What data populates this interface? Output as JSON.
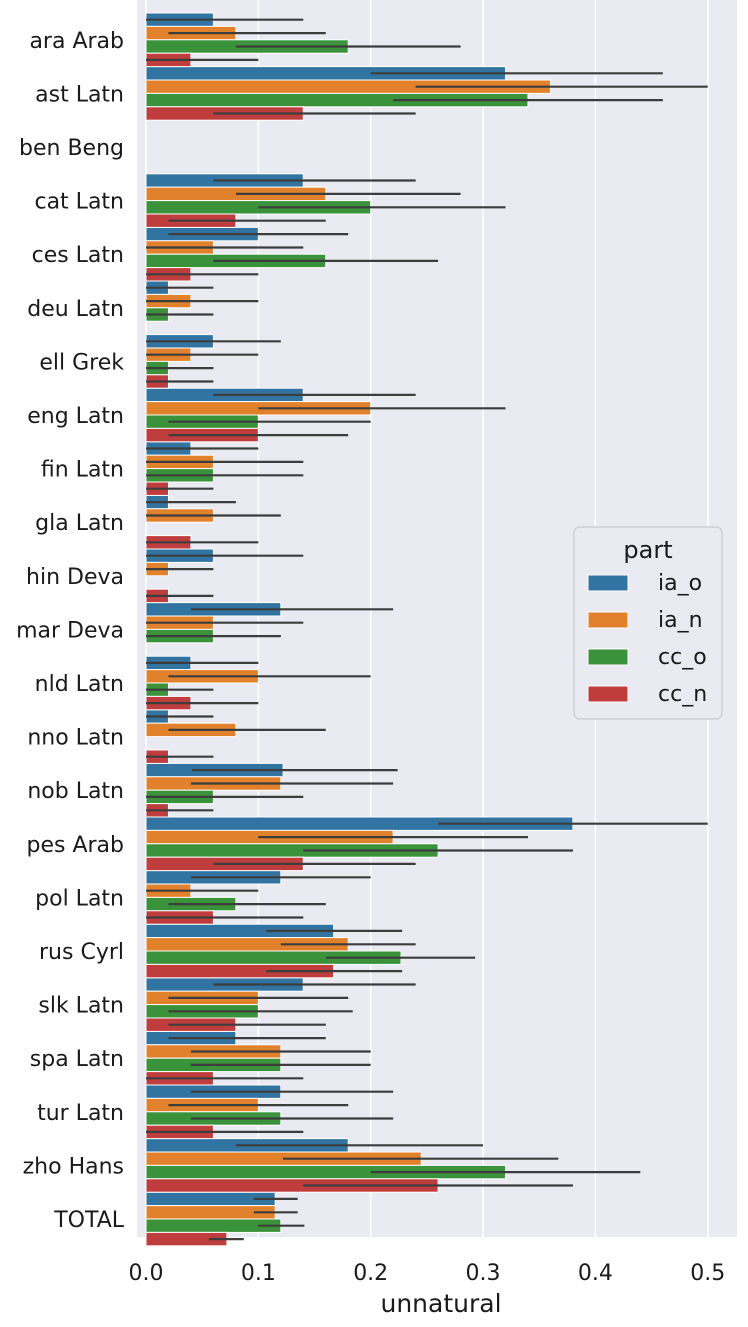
{
  "chart_data": {
    "type": "bar",
    "orientation": "horizontal",
    "xlabel": "unnatural",
    "ylabel": "",
    "xlim": [
      0,
      0.526
    ],
    "xticks": [
      0.0,
      0.1,
      0.2,
      0.3,
      0.4,
      0.5
    ],
    "xtick_labels": [
      "0.0",
      "0.1",
      "0.2",
      "0.3",
      "0.4",
      "0.5"
    ],
    "grid": true,
    "legend": {
      "title": "part",
      "location": "right"
    },
    "categories": [
      "ara Arab",
      "ast Latn",
      "ben Beng",
      "cat Latn",
      "ces Latn",
      "deu Latn",
      "ell Grek",
      "eng Latn",
      "fin Latn",
      "gla Latn",
      "hin Deva",
      "mar Deva",
      "nld Latn",
      "nno Latn",
      "nob Latn",
      "pes Arab",
      "pol Latn",
      "rus Cyrl",
      "slk Latn",
      "spa Latn",
      "tur Latn",
      "zho Hans",
      "TOTAL"
    ],
    "series": [
      {
        "name": "ia_o",
        "color": "#3274a1",
        "values": [
          0.06,
          0.32,
          0.0,
          0.14,
          0.1,
          0.02,
          0.06,
          0.14,
          0.04,
          0.02,
          0.06,
          0.12,
          0.04,
          0.02,
          0.122,
          0.38,
          0.12,
          0.167,
          0.14,
          0.08,
          0.12,
          0.18,
          0.115
        ],
        "err_low": [
          0.0,
          0.2,
          0.0,
          0.06,
          0.02,
          0.0,
          0.0,
          0.06,
          0.0,
          0.0,
          0.0,
          0.04,
          0.0,
          0.0,
          0.041,
          0.26,
          0.04,
          0.107,
          0.06,
          0.02,
          0.04,
          0.08,
          0.096
        ],
        "err_high": [
          0.14,
          0.46,
          0.0,
          0.24,
          0.18,
          0.06,
          0.12,
          0.24,
          0.1,
          0.08,
          0.14,
          0.22,
          0.1,
          0.06,
          0.224,
          0.5,
          0.2,
          0.228,
          0.24,
          0.16,
          0.22,
          0.3,
          0.135
        ]
      },
      {
        "name": "ia_n",
        "color": "#e1812c",
        "values": [
          0.08,
          0.36,
          0.0,
          0.16,
          0.06,
          0.04,
          0.04,
          0.2,
          0.06,
          0.06,
          0.02,
          0.06,
          0.1,
          0.08,
          0.12,
          0.22,
          0.04,
          0.18,
          0.1,
          0.12,
          0.1,
          0.245,
          0.115
        ],
        "err_low": [
          0.02,
          0.24,
          0.0,
          0.08,
          0.0,
          0.0,
          0.0,
          0.1,
          0.0,
          0.0,
          0.0,
          0.0,
          0.02,
          0.02,
          0.04,
          0.1,
          0.0,
          0.12,
          0.02,
          0.04,
          0.02,
          0.122,
          0.096
        ],
        "err_high": [
          0.16,
          0.5,
          0.0,
          0.28,
          0.14,
          0.1,
          0.1,
          0.32,
          0.14,
          0.12,
          0.06,
          0.14,
          0.2,
          0.16,
          0.22,
          0.34,
          0.1,
          0.24,
          0.18,
          0.2,
          0.18,
          0.367,
          0.135
        ]
      },
      {
        "name": "cc_o",
        "color": "#3a923a",
        "values": [
          0.18,
          0.34,
          0.0,
          0.2,
          0.16,
          0.02,
          0.02,
          0.1,
          0.06,
          0.0,
          0.0,
          0.06,
          0.02,
          0.0,
          0.06,
          0.26,
          0.08,
          0.227,
          0.1,
          0.12,
          0.12,
          0.32,
          0.12
        ],
        "err_low": [
          0.08,
          0.22,
          0.0,
          0.1,
          0.06,
          0.0,
          0.0,
          0.02,
          0.0,
          0.0,
          0.0,
          0.0,
          0.0,
          0.0,
          0.0,
          0.14,
          0.02,
          0.16,
          0.02,
          0.04,
          0.04,
          0.2,
          0.1
        ],
        "err_high": [
          0.28,
          0.46,
          0.0,
          0.32,
          0.26,
          0.06,
          0.06,
          0.2,
          0.14,
          0.0,
          0.0,
          0.12,
          0.06,
          0.0,
          0.14,
          0.38,
          0.16,
          0.293,
          0.184,
          0.2,
          0.22,
          0.44,
          0.141
        ]
      },
      {
        "name": "cc_n",
        "color": "#c03d3e",
        "values": [
          0.04,
          0.14,
          0.0,
          0.08,
          0.04,
          0.0,
          0.02,
          0.1,
          0.02,
          0.04,
          0.02,
          0.0,
          0.04,
          0.02,
          0.02,
          0.14,
          0.06,
          0.167,
          0.08,
          0.06,
          0.06,
          0.26,
          0.072
        ],
        "err_low": [
          0.0,
          0.06,
          0.0,
          0.02,
          0.0,
          0.0,
          0.0,
          0.02,
          0.0,
          0.0,
          0.0,
          0.0,
          0.0,
          0.0,
          0.0,
          0.06,
          0.0,
          0.107,
          0.02,
          0.0,
          0.0,
          0.14,
          0.056
        ],
        "err_high": [
          0.1,
          0.24,
          0.0,
          0.16,
          0.1,
          0.0,
          0.06,
          0.18,
          0.06,
          0.1,
          0.06,
          0.0,
          0.1,
          0.06,
          0.06,
          0.24,
          0.14,
          0.228,
          0.16,
          0.14,
          0.14,
          0.38,
          0.087
        ]
      }
    ]
  }
}
